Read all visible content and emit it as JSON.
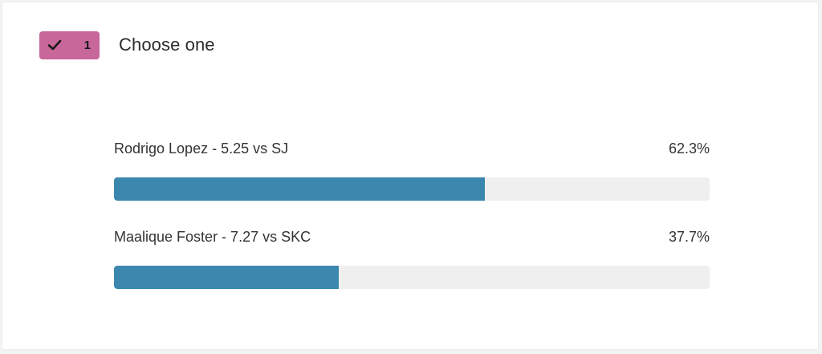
{
  "poll": {
    "badge_count": "1",
    "title": "Choose one",
    "options": [
      {
        "label": "Rodrigo Lopez - 5.25 vs SJ",
        "percent_label": "62.3%",
        "fraction": 0.623
      },
      {
        "label": "Maalique Foster - 7.27 vs SKC",
        "percent_label": "37.7%",
        "fraction": 0.377
      }
    ]
  },
  "colors": {
    "badge_bg": "#c8679a",
    "bar_fill": "#3b87ad",
    "bar_track": "#efefef"
  },
  "icons": {
    "badge_icon": "check-icon"
  }
}
